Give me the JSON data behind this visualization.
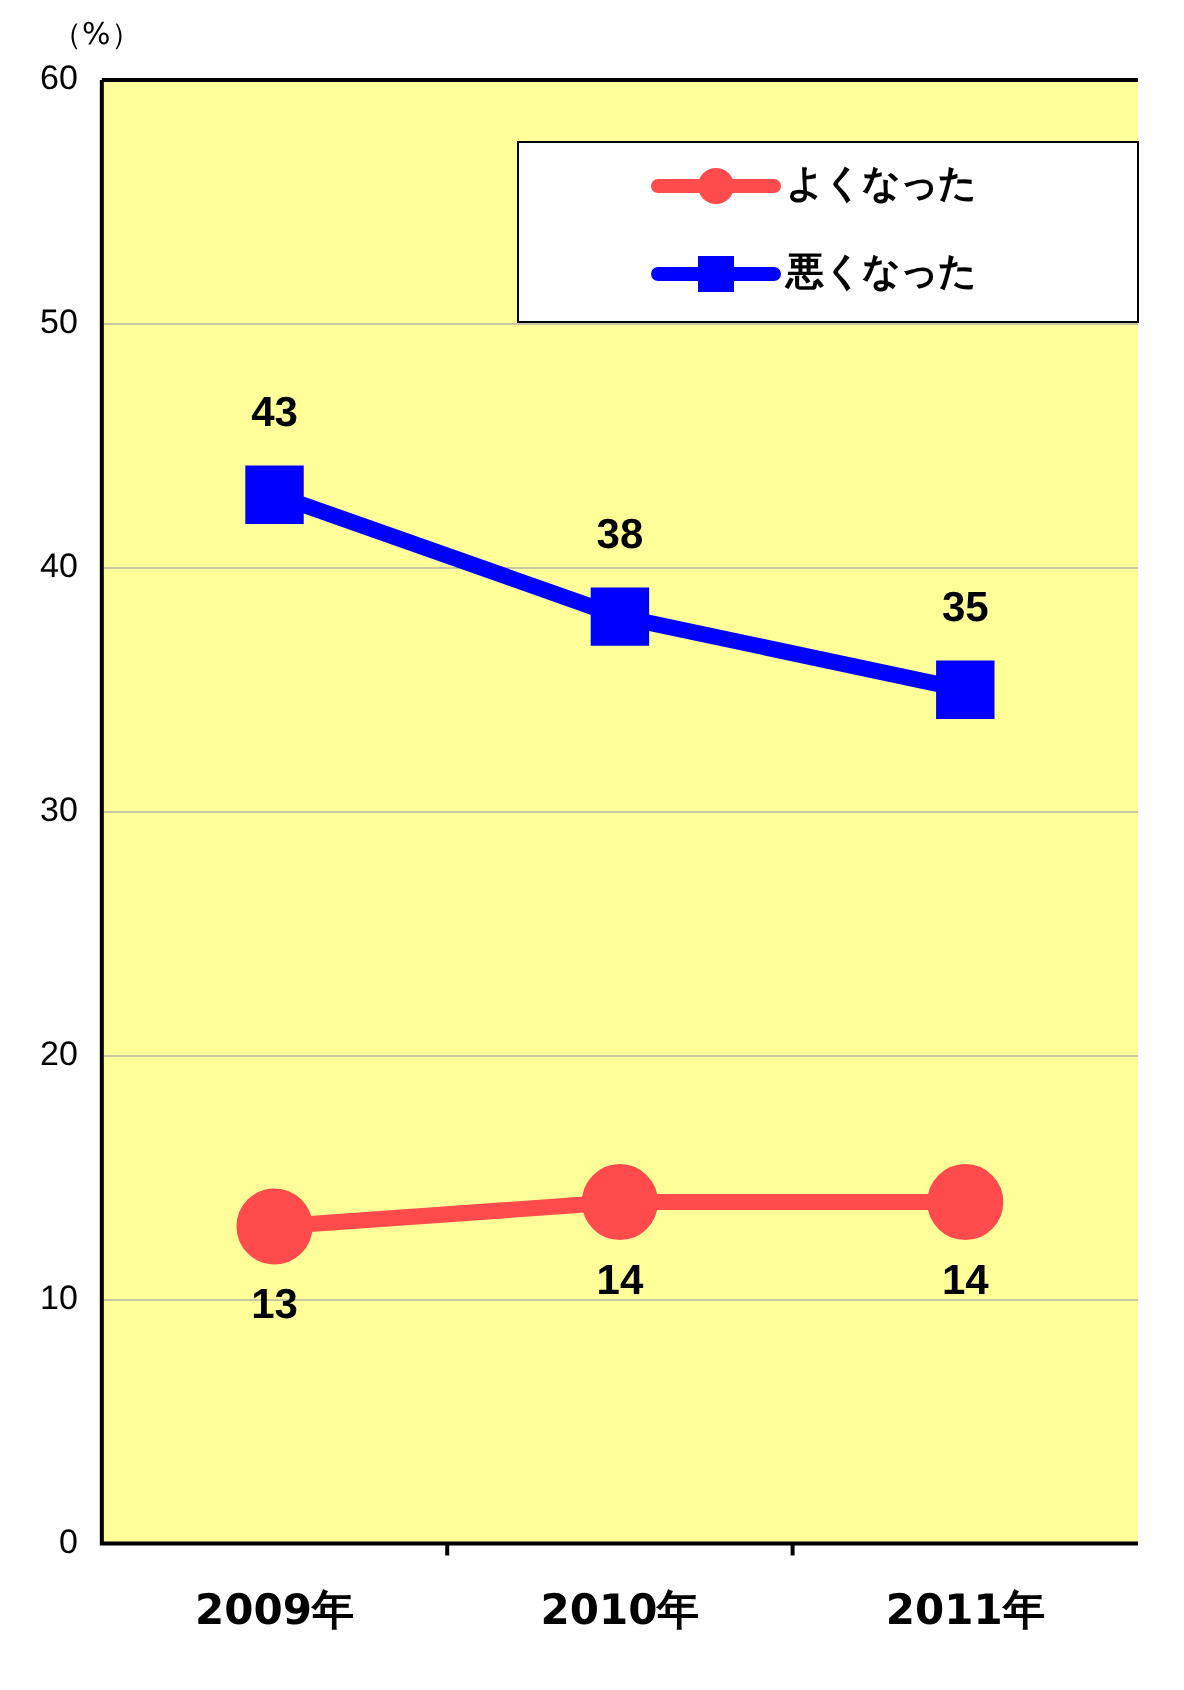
{
  "chart_data": {
    "type": "line",
    "ylabel": "（%）",
    "categories": [
      "2009年",
      "2010年",
      "2011年"
    ],
    "series": [
      {
        "name": "よくなった",
        "color": "#ff4b4b",
        "values": [
          13,
          14,
          14
        ],
        "marker": "circle"
      },
      {
        "name": "悪くなった",
        "color": "#0000ff",
        "values": [
          43,
          38,
          35
        ],
        "marker": "square"
      }
    ],
    "ylim": [
      0,
      60
    ],
    "yticks": [
      0,
      10,
      20,
      30,
      40,
      50,
      60
    ],
    "grid": "y",
    "legend": "top right",
    "data_labels": true
  }
}
